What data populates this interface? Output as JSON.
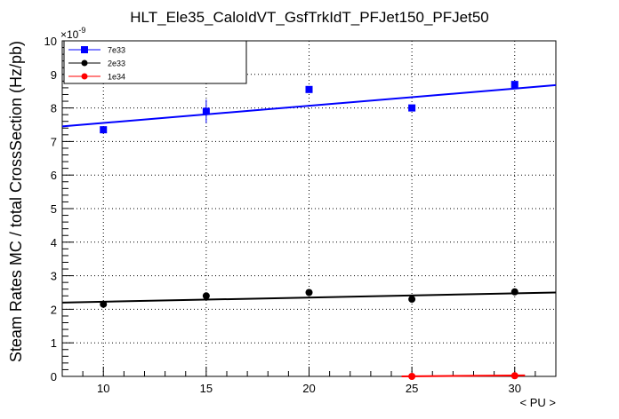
{
  "chart_data": {
    "type": "scatter",
    "title": "HLT_Ele35_CaloIdVT_GsfTrkIdT_PFJet150_PFJet50",
    "xlabel": "< PU >",
    "ylabel": "Steam Rates MC / total CrossSection (Hz/pb)",
    "y_exponent_label": "×10",
    "y_exponent_power": "-9",
    "xlim": [
      8,
      32
    ],
    "ylim": [
      0,
      10
    ],
    "x_ticks": [
      10,
      15,
      20,
      25,
      30
    ],
    "x_tick_labels": [
      "10",
      "15",
      "20",
      "25",
      "30"
    ],
    "y_ticks": [
      0,
      1,
      2,
      3,
      4,
      5,
      6,
      7,
      8,
      9,
      10
    ],
    "y_tick_labels": [
      "0",
      "1",
      "2",
      "3",
      "4",
      "5",
      "6",
      "7",
      "8",
      "9",
      "10"
    ],
    "grid": true,
    "legend_position": "top-left",
    "series": [
      {
        "name": "7e33",
        "color": "#0000ff",
        "marker": "square",
        "x": [
          10,
          15,
          20,
          25,
          30
        ],
        "y": [
          7.35,
          7.9,
          8.55,
          8.0,
          8.7
        ],
        "yerr": [
          0.0,
          0.35,
          0.0,
          0.0,
          0.0
        ],
        "fit": {
          "x": [
            8,
            32
          ],
          "y": [
            7.45,
            8.68
          ]
        }
      },
      {
        "name": "2e33",
        "color": "#000000",
        "marker": "circle",
        "x": [
          10,
          15,
          20,
          25,
          30
        ],
        "y": [
          2.15,
          2.4,
          2.5,
          2.3,
          2.52
        ],
        "yerr": [
          0,
          0,
          0,
          0,
          0
        ],
        "fit": {
          "x": [
            8,
            32
          ],
          "y": [
            2.2,
            2.5
          ]
        }
      },
      {
        "name": "1e34",
        "color": "#ff0000",
        "marker": "circle",
        "x": [
          25,
          30
        ],
        "y": [
          0.0,
          0.02
        ],
        "yerr": [
          0,
          0
        ],
        "fit": {
          "x": [
            24.5,
            30.5
          ],
          "y": [
            0.0,
            0.03
          ]
        }
      }
    ]
  }
}
